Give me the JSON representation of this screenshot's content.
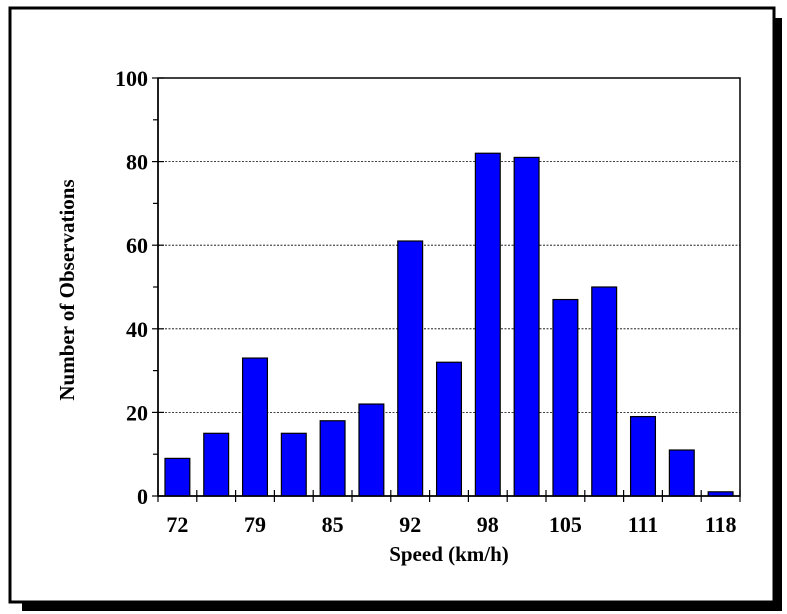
{
  "chart_data": {
    "type": "bar",
    "title": "",
    "xlabel": "Speed (km/h)",
    "ylabel": "Number of Observations",
    "categories": [
      "72",
      "",
      "79",
      "",
      "85",
      "",
      "92",
      "",
      "98",
      "",
      "105",
      "",
      "111",
      "",
      "118"
    ],
    "xtick_labels": [
      "72",
      "79",
      "85",
      "92",
      "98",
      "105",
      "111",
      "118"
    ],
    "values": [
      9,
      15,
      33,
      15,
      18,
      22,
      61,
      32,
      82,
      81,
      47,
      50,
      19,
      11,
      1
    ],
    "ylim": [
      0,
      100
    ],
    "yticks": [
      "0",
      "20",
      "40",
      "60",
      "80",
      "100"
    ],
    "grid": "horizontal dashed",
    "bar_color": "#0000ff"
  }
}
